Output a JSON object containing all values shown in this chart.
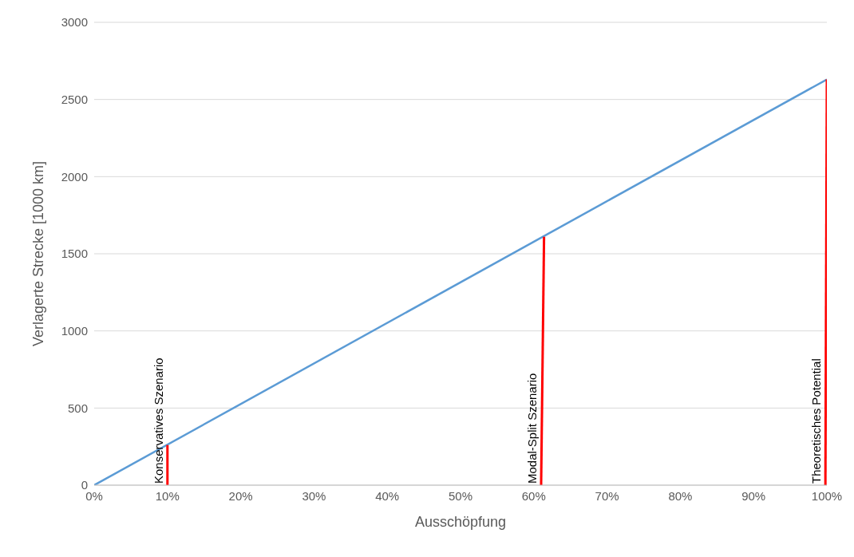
{
  "chart_data": {
    "type": "line",
    "xlabel": "Ausschöpfung",
    "ylabel": "Verlagerte Strecke [1000 km]",
    "xlim": [
      0,
      100
    ],
    "xticks": [
      {
        "value": 0,
        "label": "0%"
      },
      {
        "value": 10,
        "label": "10%"
      },
      {
        "value": 20,
        "label": "20%"
      },
      {
        "value": 30,
        "label": "30%"
      },
      {
        "value": 40,
        "label": "40%"
      },
      {
        "value": 50,
        "label": "50%"
      },
      {
        "value": 60,
        "label": "60%"
      },
      {
        "value": 70,
        "label": "70%"
      },
      {
        "value": 80,
        "label": "80%"
      },
      {
        "value": 90,
        "label": "90%"
      },
      {
        "value": 100,
        "label": "100%"
      }
    ],
    "ylim": [
      0,
      3000
    ],
    "yticks": [
      0,
      500,
      1000,
      1500,
      2000,
      2500,
      3000
    ],
    "grid": "y",
    "marker": "none",
    "line_style": "solid",
    "series": [
      {
        "color": "#5b9bd5",
        "x": [
          0,
          100
        ],
        "values": [
          0,
          2630
        ]
      },
      {
        "color": "#ff0000",
        "x": [
          10,
          10
        ],
        "values": [
          0,
          260
        ]
      },
      {
        "color": "#ff0000",
        "x": [
          61,
          61.4
        ],
        "values": [
          0,
          1610
        ]
      },
      {
        "color": "#ff0000",
        "x": [
          99.8,
          100
        ],
        "values": [
          0,
          2630
        ]
      }
    ],
    "annotations": [
      {
        "text": "Konservatives Szenario",
        "x": 10,
        "y": 0
      },
      {
        "text": "Modal-Split Szenario",
        "x": 61,
        "y": 0
      },
      {
        "text": "Theoretisches Potential",
        "x": 99.8,
        "y": 0
      }
    ]
  }
}
